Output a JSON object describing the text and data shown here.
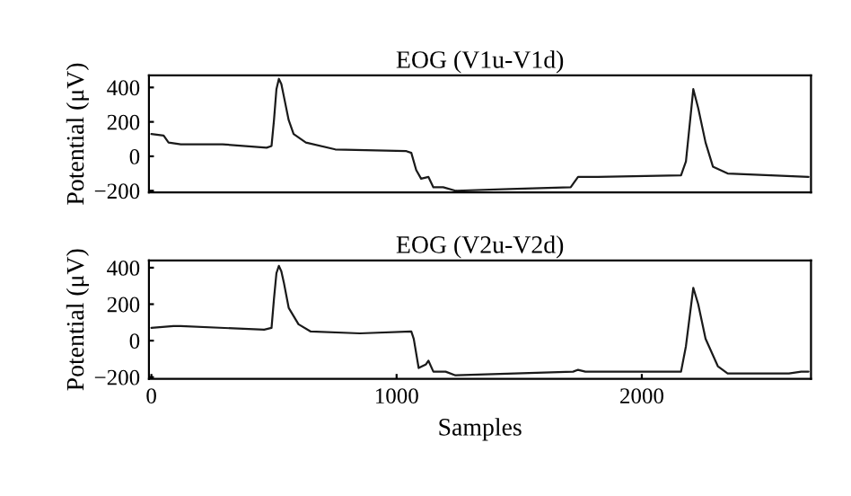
{
  "chart_data": [
    {
      "type": "line",
      "title": "EOG (V1u-V1d)",
      "ylabel": "Potential (μV)",
      "xlim": [
        -10,
        2690
      ],
      "ylim": [
        -210,
        470
      ],
      "yticks": [
        {
          "value": 400,
          "label": "400"
        },
        {
          "value": 200,
          "label": "200"
        },
        {
          "value": 0,
          "label": "0"
        },
        {
          "value": -200,
          "label": "−200"
        }
      ],
      "tick_labels": "y",
      "grid": false,
      "legend": false,
      "series": [
        {
          "color": "#1a1a1a",
          "x": [
            0,
            50,
            70,
            120,
            290,
            470,
            490,
            500,
            510,
            520,
            530,
            540,
            560,
            580,
            630,
            750,
            1040,
            1060,
            1080,
            1100,
            1130,
            1150,
            1190,
            1240,
            1460,
            1710,
            1740,
            1820,
            2160,
            2180,
            2200,
            2210,
            2230,
            2260,
            2290,
            2350,
            2680
          ],
          "values": [
            130,
            120,
            80,
            70,
            70,
            50,
            60,
            210,
            390,
            450,
            420,
            350,
            210,
            130,
            80,
            40,
            30,
            20,
            -80,
            -130,
            -120,
            -180,
            -180,
            -200,
            -190,
            -180,
            -120,
            -120,
            -110,
            -30,
            250,
            390,
            280,
            80,
            -60,
            -100,
            -120
          ]
        }
      ]
    },
    {
      "type": "line",
      "title": "EOG (V2u-V2d)",
      "ylabel": "Potential (μV)",
      "xlabel": "Samples",
      "xlim": [
        -10,
        2690
      ],
      "xticks": [
        0,
        1000,
        2000
      ],
      "ylim": [
        -210,
        440
      ],
      "yticks": [
        {
          "value": 400,
          "label": "400"
        },
        {
          "value": 200,
          "label": "200"
        },
        {
          "value": 0,
          "label": "0"
        },
        {
          "value": -200,
          "label": "−200"
        }
      ],
      "grid": false,
      "legend": false,
      "series": [
        {
          "color": "#1a1a1a",
          "x": [
            0,
            90,
            120,
            460,
            490,
            500,
            510,
            520,
            530,
            540,
            560,
            600,
            650,
            850,
            1060,
            1070,
            1090,
            1120,
            1130,
            1150,
            1200,
            1240,
            1720,
            1740,
            1770,
            2160,
            2180,
            2210,
            2230,
            2260,
            2310,
            2350,
            2600,
            2650,
            2680
          ],
          "values": [
            70,
            80,
            80,
            60,
            70,
            230,
            370,
            410,
            380,
            320,
            180,
            90,
            50,
            40,
            50,
            10,
            -150,
            -130,
            -110,
            -170,
            -170,
            -190,
            -170,
            -160,
            -170,
            -170,
            -30,
            290,
            200,
            10,
            -140,
            -180,
            -180,
            -170,
            -170
          ]
        }
      ]
    }
  ]
}
